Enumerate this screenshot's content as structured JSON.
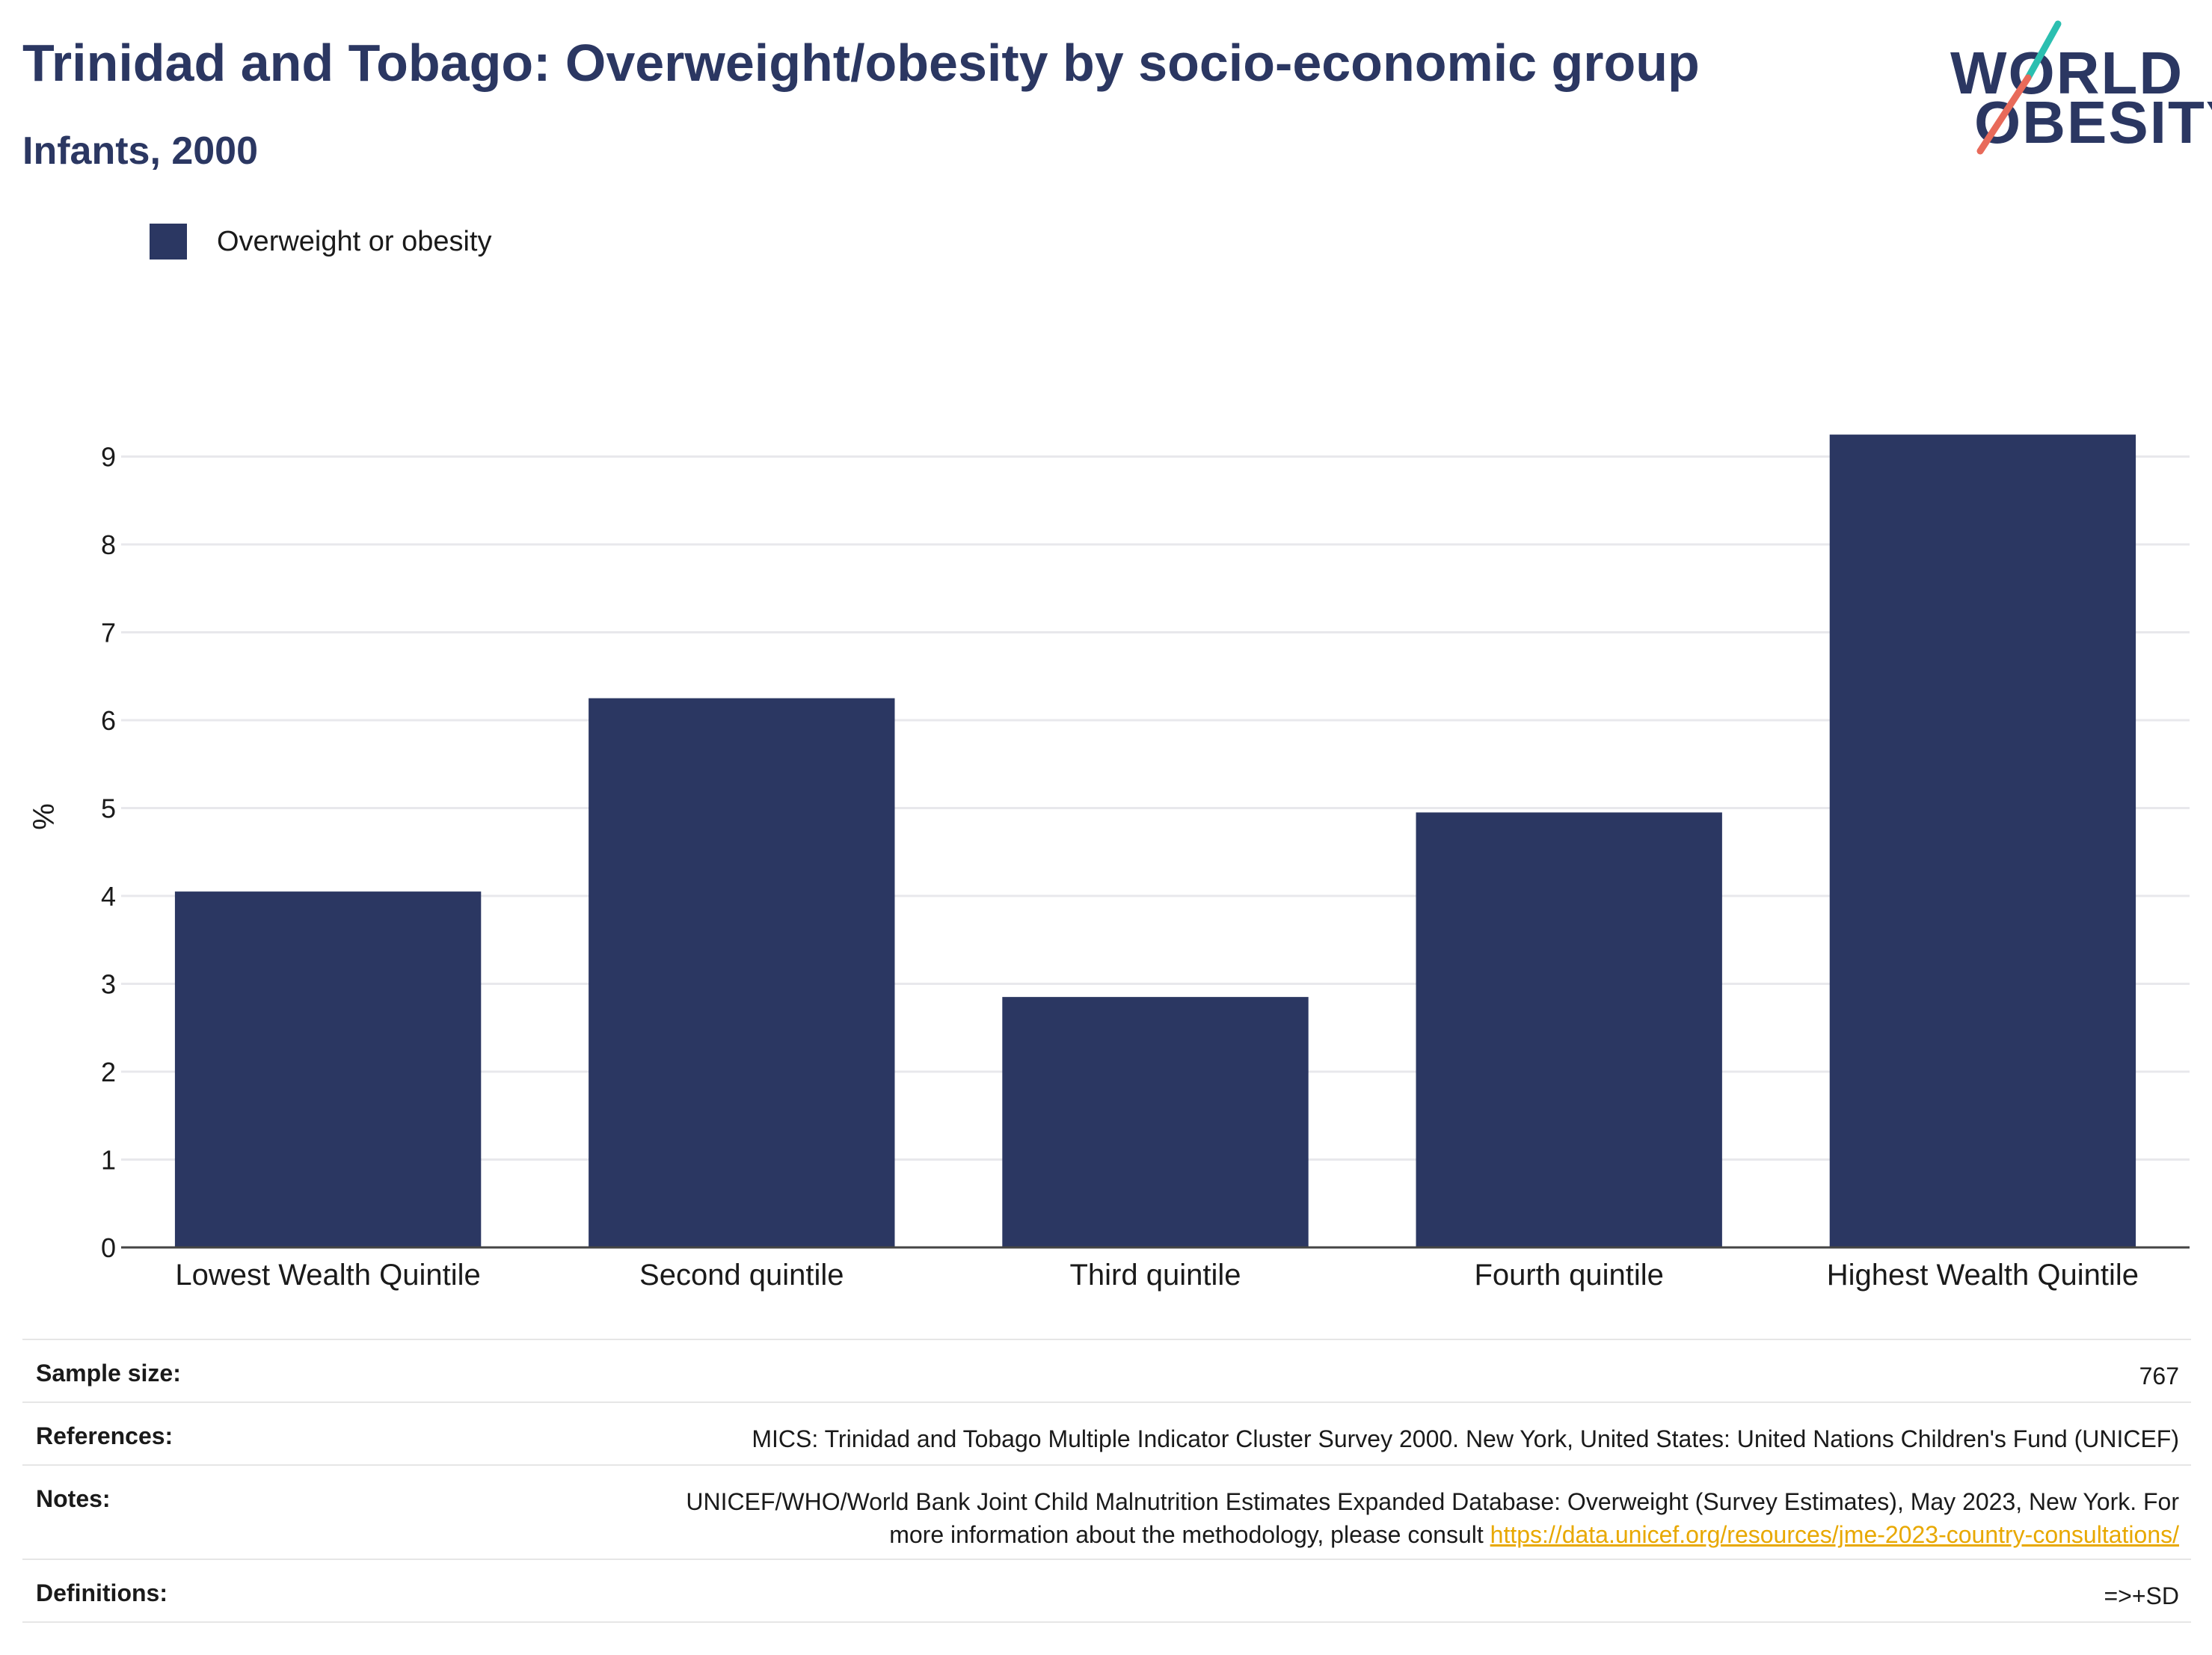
{
  "header": {
    "title": "Trinidad and Tobago: Overweight/obesity by socio-economic group",
    "subtitle": "Infants, 2000"
  },
  "logo": {
    "line1": "WORLD",
    "line2": "OBESITY"
  },
  "colors": {
    "bar": "#2b3762",
    "title": "#2b3762",
    "link": "#e8a800",
    "logo_teal": "#2bbfb0",
    "logo_coral": "#e86a5a"
  },
  "chart_data": {
    "type": "bar",
    "categories": [
      "Lowest Wealth Quintile",
      "Second quintile",
      "Third quintile",
      "Fourth quintile",
      "Highest Wealth Quintile"
    ],
    "series": [
      {
        "name": "Overweight or obesity",
        "values": [
          4.05,
          6.25,
          2.85,
          4.95,
          9.25
        ]
      }
    ],
    "ylabel": "%",
    "ylim": [
      0,
      9.6
    ],
    "yticks": [
      0,
      1,
      2,
      3,
      4,
      5,
      6,
      7,
      8,
      9
    ],
    "grid": true,
    "legend": "top-left"
  },
  "info": {
    "sample_size_label": "Sample size:",
    "sample_size_value": "767",
    "references_label": "References:",
    "references_value": "MICS: Trinidad and Tobago Multiple Indicator Cluster Survey 2000. New York, United States: United Nations Children's Fund (UNICEF)",
    "notes_label": "Notes:",
    "notes_value": "UNICEF/WHO/World Bank Joint Child Malnutrition Estimates Expanded Database: Overweight (Survey Estimates), May 2023, New York. For more information about the methodology, please consult",
    "notes_link": "https://data.unicef.org/resources/jme-2023-country-consultations/",
    "definitions_label": "Definitions:",
    "definitions_value": "=>+SD"
  }
}
